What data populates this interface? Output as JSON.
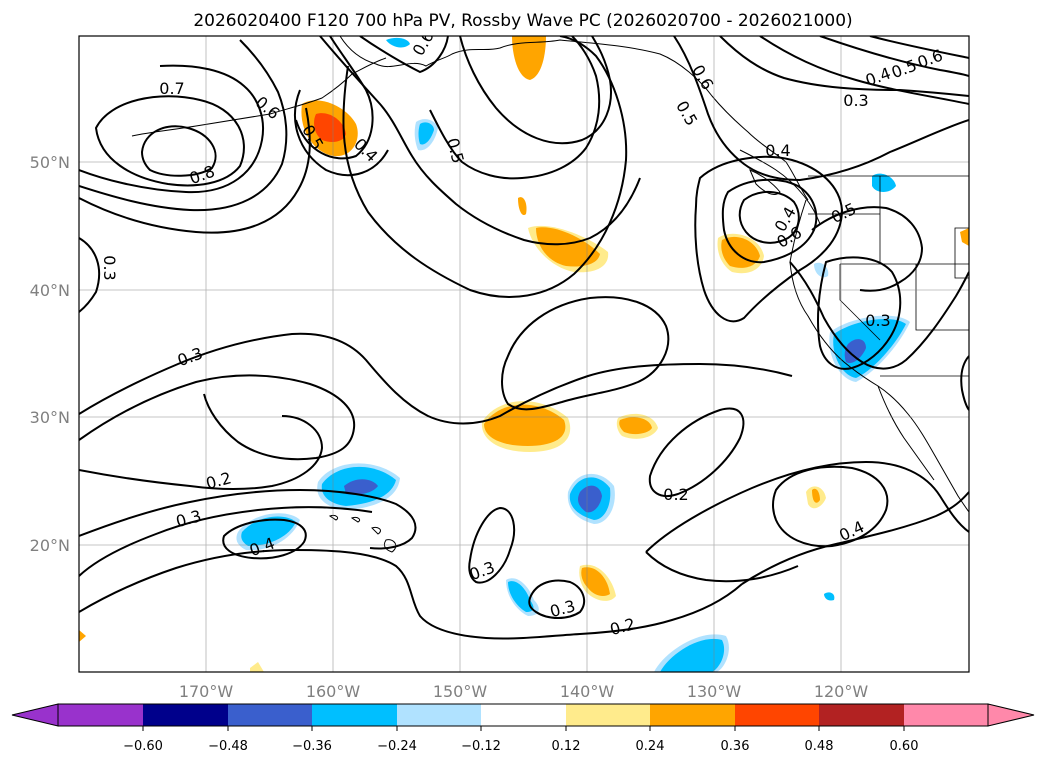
{
  "title": "2026020400 F120 700 hPa PV, Rossby Wave PC (2026020700 - 2026021000)",
  "lon_labels": [
    "170°W",
    "160°W",
    "150°W",
    "140°W",
    "130°W",
    "120°W"
  ],
  "lat_labels": [
    "50°N",
    "40°N",
    "30°N",
    "20°N"
  ],
  "colorbar": {
    "labels": [
      "−0.60",
      "−0.48",
      "−0.36",
      "−0.24",
      "−0.12",
      "0.12",
      "0.24",
      "0.36",
      "0.48",
      "0.60"
    ],
    "colors": [
      "#9932cc",
      "#00008b",
      "#3a5fcd",
      "#00bfff",
      "#b0e2ff",
      "#ffffff",
      "#ffeb8c",
      "#ffa500",
      "#ff4500",
      "#b22222",
      "#ff88aa"
    ]
  },
  "contour_labels": [
    "0.7",
    "0.6",
    "0.8",
    "0.5",
    "0.4",
    "0.6",
    "0.5",
    "0.6",
    "0.5",
    "0.4",
    "0.3",
    "0.4",
    "0.5",
    "0.6",
    "0.4",
    "0.6",
    "0.5",
    "0.3",
    "0.3",
    "0.3",
    "0.2",
    "0.3",
    "0.4",
    "0.2",
    "0.4",
    "0.3",
    "0.3",
    "0.2"
  ]
}
